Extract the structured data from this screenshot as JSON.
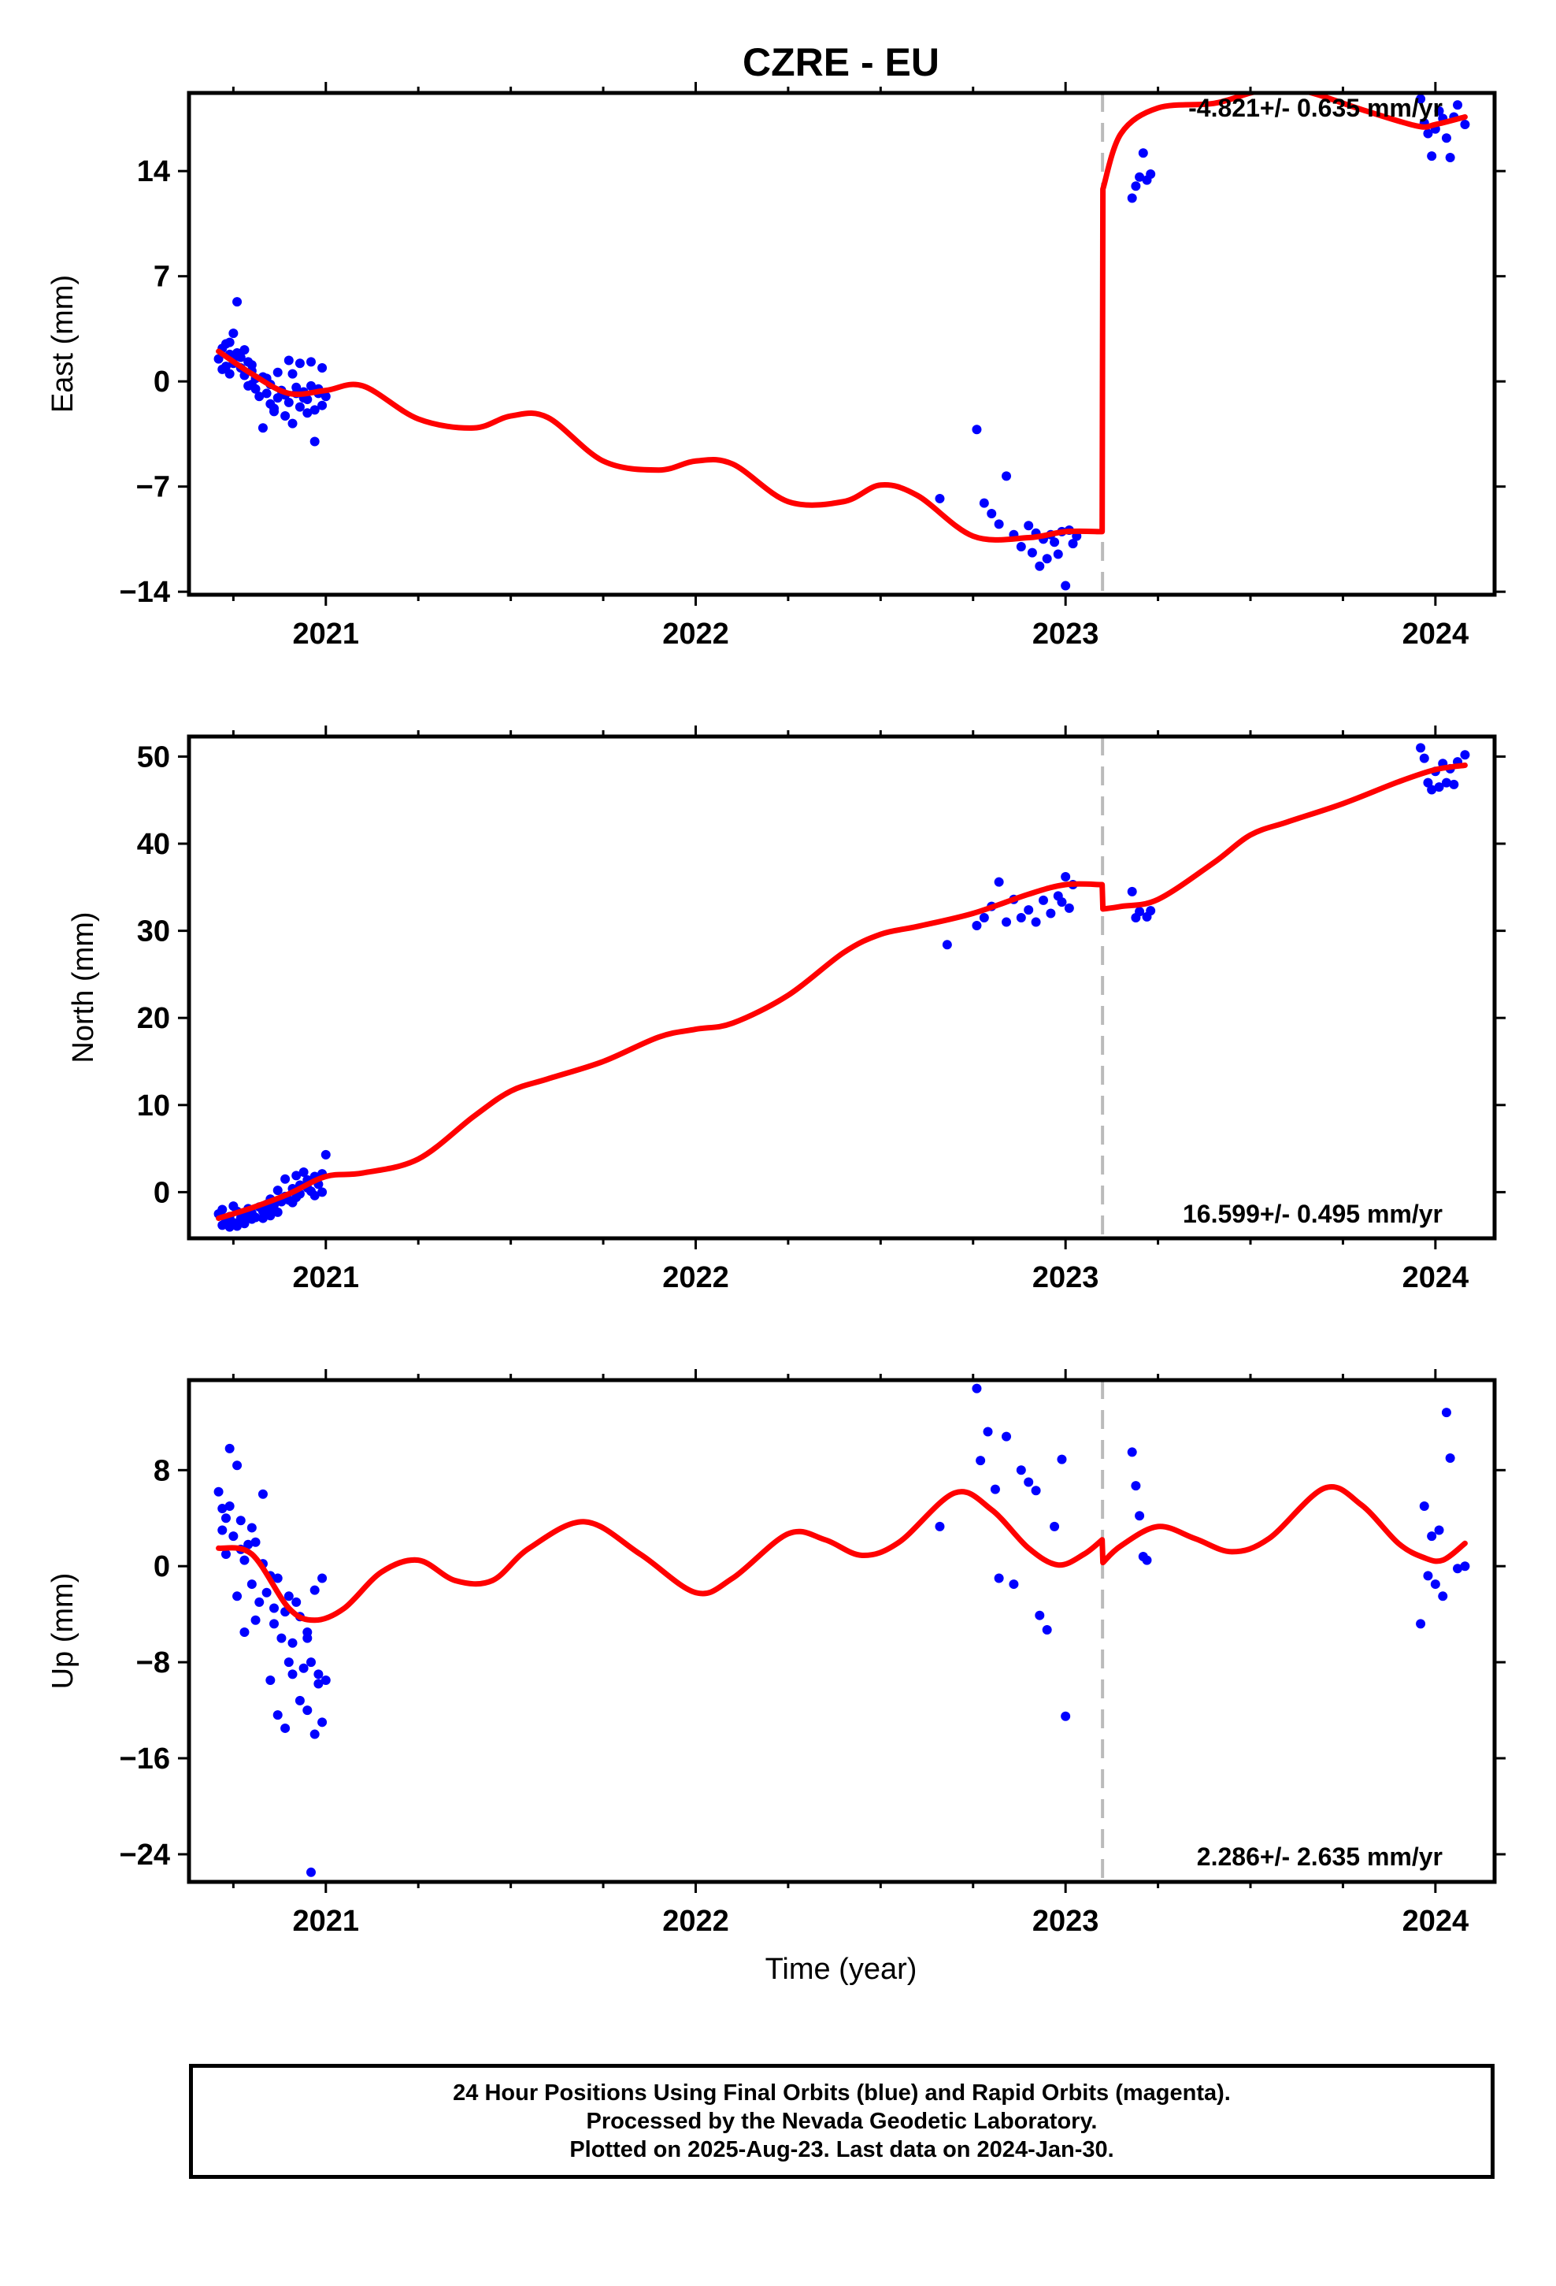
{
  "title": "CZRE - EU",
  "xlabel": "Time (year)",
  "footer": {
    "line1": "24 Hour Positions Using Final Orbits (blue) and Rapid Orbits (magenta).",
    "line2": "Processed by the Nevada Geodetic Laboratory.",
    "line3": "Plotted on 2025-Aug-23. Last data on 2024-Jan-30."
  },
  "colors": {
    "points": "#0000ff",
    "model": "#ff0000",
    "step_line": "#bbbbbb"
  },
  "chart_data": [
    {
      "type": "scatter",
      "panel": "east",
      "ylabel": "East (mm)",
      "rate_label": "-4.821+/- 0.635 mm/yr",
      "xlim": [
        2020.63,
        2024.16
      ],
      "ylim": [
        -14.2,
        19.2
      ],
      "xticks": [
        2021,
        2022,
        2023,
        2024
      ],
      "yticks": [
        -14,
        -7,
        0,
        7,
        14
      ],
      "step_x": 2023.1,
      "series": [
        {
          "kind": "points",
          "x": [
            2020.71,
            2020.72,
            2020.72,
            2020.73,
            2020.73,
            2020.74,
            2020.74,
            2020.75,
            2020.75,
            2020.76,
            2020.76,
            2020.77,
            2020.77,
            2020.78,
            2020.78,
            2020.79,
            2020.79,
            2020.8,
            2020.8,
            2020.81,
            2020.81,
            2020.82,
            2020.83,
            2020.83,
            2020.84,
            2020.85,
            2020.85,
            2020.86,
            2020.87,
            2020.87,
            2020.88,
            2020.89,
            2020.89,
            2020.9,
            2020.91,
            2020.91,
            2020.92,
            2020.93,
            2020.93,
            2020.94,
            2020.95,
            2020.95,
            2020.96,
            2020.97,
            2020.97,
            2020.98,
            2020.99,
            2020.99,
            2021.0,
            2020.8,
            2020.86,
            2020.9,
            2020.94,
            2020.98,
            2020.74,
            2020.76,
            2020.84,
            2020.92,
            2020.96,
            2022.66,
            2022.76,
            2022.78,
            2022.8,
            2022.82,
            2022.84,
            2022.86,
            2022.88,
            2022.9,
            2022.91,
            2022.92,
            2022.93,
            2022.94,
            2022.95,
            2022.96,
            2022.97,
            2022.98,
            2022.99,
            2023.0,
            2023.01,
            2023.02,
            2023.03,
            2023.18,
            2023.19,
            2023.2,
            2023.21,
            2023.22,
            2023.23,
            2023.96,
            2023.97,
            2023.98,
            2023.99,
            2024.0,
            2024.01,
            2024.02,
            2024.03,
            2024.04,
            2024.05,
            2024.06,
            2024.08
          ],
          "y": [
            1.5,
            2.2,
            0.8,
            1.0,
            2.5,
            1.8,
            0.5,
            1.2,
            3.2,
            1.9,
            5.3,
            0.9,
            1.6,
            2.1,
            0.4,
            1.3,
            -0.3,
            0.7,
            1.1,
            -0.5,
            0.2,
            -1.0,
            -3.1,
            0.3,
            -0.8,
            -1.5,
            -0.2,
            -2.0,
            0.6,
            -1.1,
            -0.6,
            -2.3,
            -0.9,
            -1.4,
            0.5,
            -2.8,
            -0.4,
            -1.7,
            1.2,
            -0.7,
            -2.1,
            -1.2,
            -0.3,
            -1.9,
            -4.0,
            -0.8,
            -1.6,
            0.9,
            -1.0,
            -0.2,
            -1.8,
            1.4,
            -1.1,
            -0.5,
            2.6,
            1.7,
            0.2,
            -0.8,
            1.3,
            -7.8,
            -3.2,
            -8.1,
            -8.8,
            -9.5,
            -6.3,
            -10.2,
            -11.0,
            -9.6,
            -11.4,
            -10.1,
            -12.3,
            -10.5,
            -11.8,
            -10.2,
            -10.7,
            -11.5,
            -10.0,
            -13.6,
            -9.9,
            -10.8,
            -10.3,
            12.2,
            13.0,
            13.6,
            15.2,
            13.4,
            13.8,
            18.8,
            17.2,
            16.5,
            15.0,
            16.8,
            18.0,
            17.5,
            16.2,
            14.9,
            17.6,
            18.4,
            17.1
          ],
          "color": "#0000ff"
        },
        {
          "kind": "model",
          "x": [
            2020.71,
            2020.8,
            2020.9,
            2021.0,
            2021.1,
            2021.25,
            2021.4,
            2021.5,
            2021.6,
            2021.75,
            2021.9,
            2022.0,
            2022.1,
            2022.25,
            2022.4,
            2022.5,
            2022.6,
            2022.75,
            2022.9,
            2023.0,
            2023.099,
            2023.101,
            2023.15,
            2023.25,
            2023.4,
            2023.5,
            2023.55,
            2023.65,
            2023.8,
            2023.95,
            2024.0,
            2024.08
          ],
          "y": [
            2.0,
            0.5,
            -0.8,
            -0.6,
            -0.3,
            -2.5,
            -3.1,
            -2.3,
            -2.4,
            -5.3,
            -5.9,
            -5.3,
            -5.5,
            -8.0,
            -8.0,
            -6.9,
            -7.6,
            -10.3,
            -10.4,
            -10.0,
            -10.0,
            12.8,
            16.5,
            18.2,
            18.5,
            19.2,
            19.4,
            19.3,
            18.1,
            17.0,
            17.1,
            17.6
          ],
          "color": "#ff0000"
        }
      ]
    },
    {
      "type": "scatter",
      "panel": "north",
      "ylabel": "North (mm)",
      "rate_label": "16.599+/- 0.495 mm/yr",
      "xlim": [
        2020.63,
        2024.16
      ],
      "ylim": [
        -5.3,
        52.3
      ],
      "xticks": [
        2021,
        2022,
        2023,
        2024
      ],
      "yticks": [
        0,
        10,
        20,
        30,
        40,
        50
      ],
      "step_x": 2023.1,
      "series": [
        {
          "kind": "points",
          "x": [
            2020.71,
            2020.72,
            2020.72,
            2020.73,
            2020.74,
            2020.74,
            2020.75,
            2020.76,
            2020.76,
            2020.77,
            2020.78,
            2020.78,
            2020.79,
            2020.8,
            2020.8,
            2020.81,
            2020.82,
            2020.83,
            2020.83,
            2020.84,
            2020.85,
            2020.85,
            2020.86,
            2020.87,
            2020.87,
            2020.88,
            2020.89,
            2020.89,
            2020.9,
            2020.91,
            2020.91,
            2020.92,
            2020.93,
            2020.93,
            2020.94,
            2020.95,
            2020.95,
            2020.96,
            2020.97,
            2020.97,
            2020.98,
            2020.99,
            2020.99,
            2021.0,
            2020.75,
            2020.79,
            2020.85,
            2020.92,
            2022.68,
            2022.76,
            2022.78,
            2022.8,
            2022.82,
            2022.84,
            2022.86,
            2022.88,
            2022.9,
            2022.92,
            2022.94,
            2022.96,
            2022.98,
            2022.99,
            2023.0,
            2023.01,
            2023.02,
            2023.18,
            2023.19,
            2023.2,
            2023.22,
            2023.23,
            2023.96,
            2023.97,
            2023.98,
            2023.99,
            2024.0,
            2024.01,
            2024.02,
            2024.03,
            2024.04,
            2024.05,
            2024.06,
            2024.08
          ],
          "y": [
            -2.5,
            -3.8,
            -2.0,
            -3.2,
            -4.0,
            -2.8,
            -3.5,
            -2.2,
            -3.9,
            -3.0,
            -2.6,
            -3.6,
            -1.9,
            -3.1,
            -2.4,
            -2.9,
            -1.7,
            -2.2,
            -3.0,
            -1.4,
            -2.0,
            -0.8,
            -1.5,
            -2.3,
            0.2,
            -1.1,
            -0.5,
            1.5,
            -0.9,
            0.4,
            -1.2,
            1.9,
            0.8,
            -0.2,
            2.3,
            0.5,
            1.4,
            0.1,
            1.8,
            -0.4,
            0.9,
            2.1,
            0.0,
            4.3,
            -1.6,
            -2.9,
            -2.7,
            -0.6,
            28.4,
            30.6,
            31.5,
            32.8,
            35.6,
            31.0,
            33.6,
            31.5,
            32.4,
            31.0,
            33.5,
            32.0,
            34.0,
            33.3,
            36.2,
            32.6,
            35.3,
            34.5,
            31.5,
            32.2,
            31.6,
            32.3,
            51.0,
            49.8,
            47.0,
            46.2,
            48.3,
            46.5,
            49.2,
            47.0,
            48.6,
            46.8,
            49.4,
            50.2
          ],
          "color": "#0000ff"
        },
        {
          "kind": "model",
          "x": [
            2020.71,
            2020.8,
            2020.9,
            2021.0,
            2021.1,
            2021.25,
            2021.4,
            2021.5,
            2021.6,
            2021.75,
            2021.9,
            2022.0,
            2022.1,
            2022.25,
            2022.4,
            2022.5,
            2022.6,
            2022.75,
            2022.9,
            2023.0,
            2023.099,
            2023.101,
            2023.15,
            2023.25,
            2023.4,
            2023.5,
            2023.6,
            2023.75,
            2023.9,
            2024.0,
            2024.08
          ],
          "y": [
            -3.0,
            -1.8,
            -0.2,
            1.8,
            2.2,
            3.8,
            8.7,
            11.6,
            13.0,
            15.0,
            17.8,
            18.7,
            19.4,
            22.6,
            27.5,
            29.6,
            30.5,
            32.0,
            34.2,
            35.3,
            35.3,
            32.5,
            32.8,
            33.6,
            37.8,
            41.0,
            42.5,
            44.6,
            47.1,
            48.5,
            49.0
          ],
          "color": "#ff0000"
        }
      ]
    },
    {
      "type": "scatter",
      "panel": "up",
      "ylabel": "Up (mm)",
      "rate_label": "2.286+/- 2.635 mm/yr",
      "xlim": [
        2020.63,
        2024.16
      ],
      "ylim": [
        -26.3,
        15.5
      ],
      "xticks": [
        2021,
        2022,
        2023,
        2024
      ],
      "yticks": [
        -24,
        -16,
        -8,
        0,
        8
      ],
      "step_x": 2023.1,
      "series": [
        {
          "kind": "points",
          "x": [
            2020.71,
            2020.72,
            2020.72,
            2020.73,
            2020.74,
            2020.74,
            2020.75,
            2020.76,
            2020.76,
            2020.77,
            2020.78,
            2020.78,
            2020.79,
            2020.8,
            2020.8,
            2020.81,
            2020.82,
            2020.83,
            2020.83,
            2020.84,
            2020.85,
            2020.85,
            2020.86,
            2020.87,
            2020.87,
            2020.88,
            2020.89,
            2020.89,
            2020.9,
            2020.91,
            2020.91,
            2020.92,
            2020.93,
            2020.93,
            2020.94,
            2020.95,
            2020.95,
            2020.96,
            2020.97,
            2020.97,
            2020.98,
            2020.99,
            2020.99,
            2021.0,
            2020.73,
            2020.77,
            2020.81,
            2020.86,
            2020.9,
            2020.96,
            2020.98,
            2020.95,
            2022.66,
            2022.76,
            2022.77,
            2022.79,
            2022.81,
            2022.82,
            2022.84,
            2022.86,
            2022.88,
            2022.9,
            2022.92,
            2022.93,
            2022.95,
            2022.97,
            2022.99,
            2023.0,
            2023.18,
            2023.19,
            2023.2,
            2023.21,
            2023.22,
            2023.96,
            2023.97,
            2023.98,
            2023.99,
            2024.0,
            2024.01,
            2024.02,
            2024.03,
            2024.04,
            2024.06,
            2024.08
          ],
          "y": [
            6.2,
            3.0,
            4.8,
            1.0,
            9.8,
            5.0,
            2.5,
            8.4,
            -2.5,
            3.8,
            0.5,
            -5.5,
            1.8,
            3.2,
            -1.5,
            2.0,
            -3.0,
            0.2,
            6.0,
            -2.2,
            -0.8,
            -9.5,
            -3.5,
            -12.4,
            -1.0,
            -6.0,
            -3.8,
            -13.5,
            -2.5,
            -6.4,
            -9.0,
            -3.0,
            -11.2,
            -4.2,
            -8.5,
            -5.5,
            -12.0,
            -8.0,
            -14.0,
            -2.0,
            -9.0,
            -1.0,
            -13.0,
            -9.5,
            4.0,
            1.4,
            -4.5,
            -4.8,
            -8.0,
            -25.5,
            -9.8,
            -6.0,
            3.3,
            14.8,
            8.8,
            11.2,
            6.4,
            -1.0,
            10.8,
            -1.5,
            8.0,
            7.0,
            6.3,
            -4.1,
            -5.3,
            3.3,
            8.9,
            -12.5,
            9.5,
            6.7,
            4.2,
            0.8,
            0.5,
            -4.8,
            5.0,
            -0.8,
            2.5,
            -1.5,
            3.0,
            -2.5,
            12.8,
            9.0,
            -0.2,
            0.0
          ],
          "color": "#0000ff"
        },
        {
          "kind": "model",
          "x": [
            2020.71,
            2020.8,
            2020.9,
            2020.97,
            2021.05,
            2021.15,
            2021.25,
            2021.35,
            2021.45,
            2021.55,
            2021.7,
            2021.85,
            2022.0,
            2022.1,
            2022.25,
            2022.35,
            2022.45,
            2022.55,
            2022.7,
            2022.8,
            2022.9,
            2022.98,
            2023.05,
            2023.099,
            2023.101,
            2023.15,
            2023.25,
            2023.35,
            2023.45,
            2023.55,
            2023.7,
            2023.8,
            2023.9,
            2023.97,
            2024.02,
            2024.08
          ],
          "y": [
            1.5,
            1.0,
            -3.5,
            -4.5,
            -3.5,
            -0.5,
            0.5,
            -1.2,
            -1.2,
            1.5,
            3.7,
            1.0,
            -2.2,
            -1.0,
            2.7,
            2.2,
            0.9,
            2.0,
            6.1,
            4.7,
            1.5,
            0.1,
            1.0,
            2.2,
            0.3,
            1.7,
            3.3,
            2.3,
            1.2,
            2.3,
            6.5,
            5.1,
            1.9,
            0.7,
            0.5,
            1.9
          ],
          "color": "#ff0000"
        }
      ]
    }
  ]
}
